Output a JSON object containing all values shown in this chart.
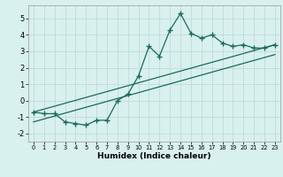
{
  "x": [
    0,
    1,
    2,
    3,
    4,
    5,
    6,
    7,
    8,
    9,
    10,
    11,
    12,
    13,
    14,
    15,
    16,
    17,
    18,
    19,
    20,
    21,
    22,
    23
  ],
  "y_main": [
    -0.7,
    -0.8,
    -0.8,
    -1.3,
    -1.4,
    -1.5,
    -1.2,
    -1.2,
    0.0,
    0.4,
    1.5,
    3.3,
    2.7,
    4.3,
    5.3,
    4.1,
    3.8,
    4.0,
    3.5,
    3.3,
    3.4,
    3.2,
    3.2,
    3.4
  ],
  "line_color": "#1a6b5a",
  "bg_color": "#d8f0ee",
  "grid_color": "#b8d8d4",
  "xlabel": "Humidex (Indice chaleur)",
  "xlim": [
    -0.5,
    23.5
  ],
  "ylim": [
    -2.5,
    5.8
  ],
  "yticks": [
    -2,
    -1,
    0,
    1,
    2,
    3,
    4,
    5
  ],
  "xticks": [
    0,
    1,
    2,
    3,
    4,
    5,
    6,
    7,
    8,
    9,
    10,
    11,
    12,
    13,
    14,
    15,
    16,
    17,
    18,
    19,
    20,
    21,
    22,
    23
  ],
  "line1_x": [
    0,
    23
  ],
  "line1_y": [
    -0.7,
    3.4
  ],
  "line2_x": [
    0,
    23
  ],
  "line2_y": [
    -1.3,
    2.8
  ]
}
